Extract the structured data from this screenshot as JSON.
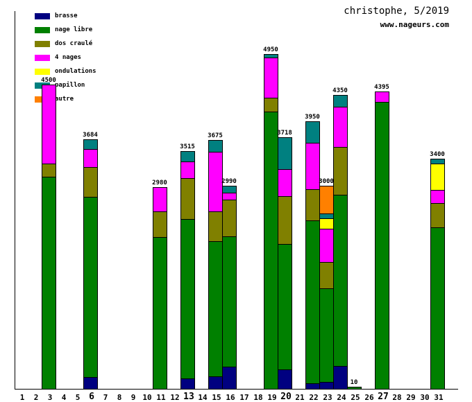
{
  "header": {
    "title": "christophe, 5/2019",
    "site": "www.nageurs.com"
  },
  "chart_data": {
    "type": "bar",
    "stacked": true,
    "title": "christophe, 5/2019",
    "watermark": "www.nageurs.com",
    "ylabel": "",
    "xlabel": "",
    "ylim": [
      0,
      5000
    ],
    "grid": false,
    "legend_position": "top-left",
    "meters_per_pixel": 10.27,
    "legend": [
      {
        "label": "brasse",
        "color": "#000080"
      },
      {
        "label": "nage libre",
        "color": "#008000"
      },
      {
        "label": "dos craulé",
        "color": "#808000"
      },
      {
        "label": "4 nages",
        "color": "#FF00FF"
      },
      {
        "label": "ondulations",
        "color": "#FFFF00"
      },
      {
        "label": "papillon",
        "color": "#008080"
      },
      {
        "label": "autre",
        "color": "#FF8000"
      }
    ],
    "x_axis": {
      "days": [
        "1",
        "2",
        "3",
        "4",
        "5",
        "6",
        "7",
        "8",
        "9",
        "10",
        "11",
        "12",
        "13",
        "14",
        "15",
        "16",
        "17",
        "18",
        "19",
        "20",
        "21",
        "22",
        "23",
        "24",
        "25",
        "26",
        "27",
        "28",
        "29",
        "30",
        "31"
      ],
      "bold_days": [
        6,
        13,
        20,
        27
      ]
    },
    "bars": [
      {
        "day": 3,
        "total": 4500,
        "total_label": "4500",
        "segments": [
          [
            "nage libre",
            3130
          ],
          [
            "dos craulé",
            195
          ],
          [
            "4 nages",
            1175
          ]
        ]
      },
      {
        "day": 6,
        "total": 3684,
        "total_label": "3684",
        "segments": [
          [
            "brasse",
            164
          ],
          [
            "nage libre",
            2670
          ],
          [
            "dos craulé",
            440
          ],
          [
            "4 nages",
            266
          ],
          [
            "papillon",
            144
          ]
        ]
      },
      {
        "day": 11,
        "total": 2980,
        "total_label": "2980",
        "segments": [
          [
            "nage libre",
            2240
          ],
          [
            "dos craulé",
            380
          ],
          [
            "4 nages",
            360
          ]
        ]
      },
      {
        "day": 13,
        "total": 3515,
        "total_label": "3515",
        "segments": [
          [
            "brasse",
            146
          ],
          [
            "nage libre",
            2362
          ],
          [
            "dos craulé",
            606
          ],
          [
            "4 nages",
            247
          ],
          [
            "papillon",
            154
          ]
        ]
      },
      {
        "day": 15,
        "total": 3675,
        "total_label": "3675",
        "segments": [
          [
            "brasse",
            172
          ],
          [
            "nage libre",
            2003
          ],
          [
            "dos craulé",
            442
          ],
          [
            "4 nages",
            883
          ],
          [
            "papillon",
            175
          ]
        ]
      },
      {
        "day": 16,
        "total": 2990,
        "total_label": "2990",
        "segments": [
          [
            "brasse",
            318
          ],
          [
            "nage libre",
            1931
          ],
          [
            "dos craulé",
            544
          ],
          [
            "4 nages",
            99
          ],
          [
            "papillon",
            98
          ]
        ]
      },
      {
        "day": 19,
        "total": 4950,
        "total_label": "4950",
        "segments": [
          [
            "nage libre",
            4098
          ],
          [
            "dos craulé",
            205
          ],
          [
            "4 nages",
            596
          ],
          [
            "papillon",
            51
          ]
        ]
      },
      {
        "day": 20,
        "total": 3718,
        "total_label": "3718",
        "segments": [
          [
            "brasse",
            278
          ],
          [
            "nage libre",
            1860
          ],
          [
            "dos craulé",
            710
          ],
          [
            "4 nages",
            400
          ],
          [
            "papillon",
            470
          ]
        ]
      },
      {
        "day": 22,
        "total": 3950,
        "total_label": "3950",
        "segments": [
          [
            "brasse",
            72
          ],
          [
            "nage libre",
            2410
          ],
          [
            "dos craulé",
            462
          ],
          [
            "4 nages",
            688
          ],
          [
            "papillon",
            318
          ]
        ]
      },
      {
        "day": 23,
        "total": 3000,
        "total_label": "3000",
        "segments": [
          [
            "brasse",
            92
          ],
          [
            "nage libre",
            1385
          ],
          [
            "dos craulé",
            390
          ],
          [
            "4 nages",
            493
          ],
          [
            "ondulations",
            154
          ],
          [
            "papillon",
            72
          ],
          [
            "autre",
            414
          ]
        ]
      },
      {
        "day": 24,
        "total": 4350,
        "total_label": "4350",
        "segments": [
          [
            "brasse",
            329
          ],
          [
            "nage libre",
            2541
          ],
          [
            "dos craulé",
            709
          ],
          [
            "4 nages",
            596
          ],
          [
            "papillon",
            175
          ]
        ]
      },
      {
        "day": 25,
        "total": 10,
        "total_label": "10",
        "segments": [
          [
            "nage libre",
            10
          ]
        ]
      },
      {
        "day": 27,
        "total": 4395,
        "total_label": "4395",
        "segments": [
          [
            "nage libre",
            4245
          ],
          [
            "4 nages",
            150
          ]
        ]
      },
      {
        "day": 31,
        "total": 3400,
        "total_label": "3400",
        "segments": [
          [
            "nage libre",
            2384
          ],
          [
            "dos craulé",
            359
          ],
          [
            "4 nages",
            195
          ],
          [
            "ondulations",
            390
          ],
          [
            "papillon",
            72
          ]
        ]
      }
    ]
  }
}
